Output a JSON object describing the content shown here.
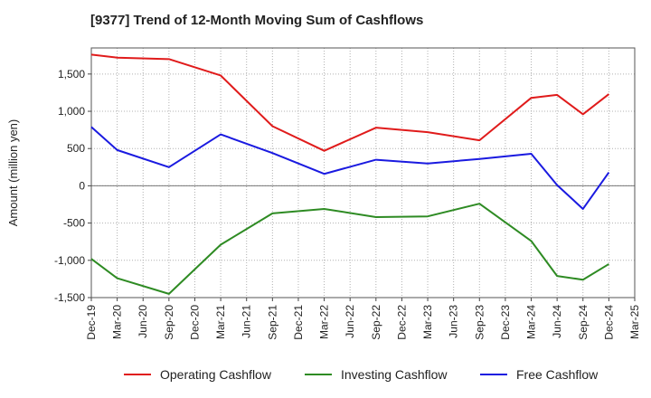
{
  "chart_data": {
    "type": "line",
    "title": "[9377]  Trend of 12-Month Moving Sum of Cashflows",
    "ylabel": "Amount (million yen)",
    "xlabel": "",
    "ylim": [
      -1500,
      1850
    ],
    "yticks": [
      -1500,
      -1000,
      -500,
      0,
      500,
      1000,
      1500
    ],
    "ytick_labels": [
      "-1,500",
      "-1,000",
      "-500",
      "0",
      "500",
      "1,000",
      "1,500"
    ],
    "categories": [
      "Dec-19",
      "Mar-20",
      "Jun-20",
      "Sep-20",
      "Dec-20",
      "Mar-21",
      "Jun-21",
      "Sep-21",
      "Dec-21",
      "Mar-22",
      "Jun-22",
      "Sep-22",
      "Dec-22",
      "Mar-23",
      "Jun-23",
      "Sep-23",
      "Dec-23",
      "Mar-24",
      "Jun-24",
      "Sep-24",
      "Dec-24",
      "Mar-25"
    ],
    "grid": true,
    "legend_position": "bottom",
    "series": [
      {
        "name": "Operating Cashflow",
        "color": "#e01b1b",
        "points": [
          {
            "x": "Dec-19",
            "y": 1760
          },
          {
            "x": "Mar-20",
            "y": 1720
          },
          {
            "x": "Sep-20",
            "y": 1700
          },
          {
            "x": "Mar-21",
            "y": 1480
          },
          {
            "x": "Sep-21",
            "y": 800
          },
          {
            "x": "Mar-22",
            "y": 470
          },
          {
            "x": "Sep-22",
            "y": 780
          },
          {
            "x": "Mar-23",
            "y": 720
          },
          {
            "x": "Sep-23",
            "y": 610
          },
          {
            "x": "Mar-24",
            "y": 1180
          },
          {
            "x": "Jun-24",
            "y": 1220
          },
          {
            "x": "Sep-24",
            "y": 960
          },
          {
            "x": "Dec-24",
            "y": 1230
          }
        ]
      },
      {
        "name": "Investing Cashflow",
        "color": "#2e8b23",
        "points": [
          {
            "x": "Dec-19",
            "y": -980
          },
          {
            "x": "Mar-20",
            "y": -1240
          },
          {
            "x": "Sep-20",
            "y": -1450
          },
          {
            "x": "Mar-21",
            "y": -790
          },
          {
            "x": "Sep-21",
            "y": -370
          },
          {
            "x": "Mar-22",
            "y": -310
          },
          {
            "x": "Sep-22",
            "y": -420
          },
          {
            "x": "Mar-23",
            "y": -410
          },
          {
            "x": "Sep-23",
            "y": -240
          },
          {
            "x": "Mar-24",
            "y": -740
          },
          {
            "x": "Jun-24",
            "y": -1210
          },
          {
            "x": "Sep-24",
            "y": -1260
          },
          {
            "x": "Dec-24",
            "y": -1050
          }
        ]
      },
      {
        "name": "Free Cashflow",
        "color": "#1a1ae0",
        "points": [
          {
            "x": "Dec-19",
            "y": 790
          },
          {
            "x": "Mar-20",
            "y": 480
          },
          {
            "x": "Sep-20",
            "y": 250
          },
          {
            "x": "Mar-21",
            "y": 690
          },
          {
            "x": "Sep-21",
            "y": 440
          },
          {
            "x": "Mar-22",
            "y": 160
          },
          {
            "x": "Sep-22",
            "y": 350
          },
          {
            "x": "Mar-23",
            "y": 300
          },
          {
            "x": "Sep-23",
            "y": 360
          },
          {
            "x": "Mar-24",
            "y": 430
          },
          {
            "x": "Jun-24",
            "y": 10
          },
          {
            "x": "Sep-24",
            "y": -310
          },
          {
            "x": "Dec-24",
            "y": 180
          }
        ]
      }
    ]
  }
}
